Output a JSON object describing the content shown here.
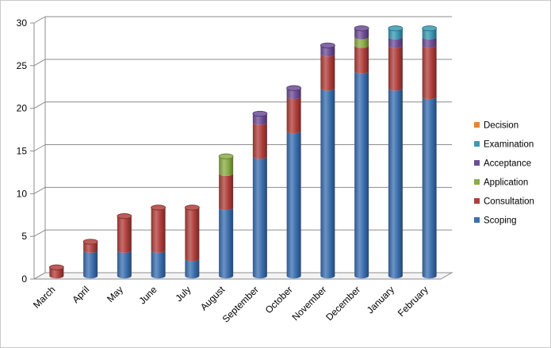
{
  "chart_data": {
    "type": "bar",
    "stacked": true,
    "categories": [
      "March",
      "April",
      "May",
      "June",
      "July",
      "August",
      "September",
      "October",
      "November",
      "December",
      "January",
      "February"
    ],
    "series": [
      {
        "name": "Scoping",
        "color": "#3b6fb0",
        "values": [
          0,
          3,
          3,
          3,
          2,
          8,
          14,
          17,
          22,
          24,
          22,
          21
        ]
      },
      {
        "name": "Consultation",
        "color": "#b03f3b",
        "values": [
          1,
          1,
          4,
          5,
          6,
          4,
          4,
          4,
          4,
          3,
          5,
          6
        ]
      },
      {
        "name": "Application",
        "color": "#8aac46",
        "values": [
          0,
          0,
          0,
          0,
          0,
          2,
          0,
          0,
          0,
          1,
          0,
          0
        ]
      },
      {
        "name": "Acceptance",
        "color": "#6e4d96",
        "values": [
          0,
          0,
          0,
          0,
          0,
          0,
          1,
          1,
          1,
          1,
          1,
          1
        ]
      },
      {
        "name": "Examination",
        "color": "#3a9ab3",
        "values": [
          0,
          0,
          0,
          0,
          0,
          0,
          0,
          0,
          0,
          0,
          1,
          1
        ]
      },
      {
        "name": "Decision",
        "color": "#e0873a",
        "values": [
          0,
          0,
          0,
          0,
          0,
          0,
          0,
          0,
          0,
          0,
          0,
          0
        ]
      }
    ],
    "legend_order": [
      "Decision",
      "Examination",
      "Acceptance",
      "Application",
      "Consultation",
      "Scoping"
    ],
    "ylim": [
      0,
      30
    ],
    "yticks": [
      "0",
      "5",
      "10",
      "15",
      "20",
      "25",
      "30"
    ],
    "grid": true,
    "legend_position": "right",
    "title": "",
    "xlabel": "",
    "ylabel": ""
  }
}
